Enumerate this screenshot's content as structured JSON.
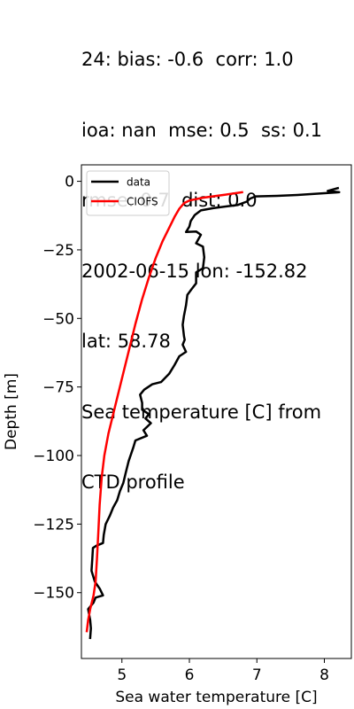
{
  "title_lines": [
    "24: bias: -0.6  corr: 1.0",
    "ioa: nan  mse: 0.5  ss: 0.1",
    "rmse: 0.7  dist: 0.0",
    "2002-06-15 lon: -152.82",
    "lat: 58.78",
    "Sea temperature [C] from",
    "CTD profile"
  ],
  "chart_data": {
    "type": "line",
    "title": "24: bias: -0.6  corr: 1.0\nioa: nan  mse: 0.5  ss: 0.1\nrmse: 0.7  dist: 0.0\n2002-06-15 lon: -152.82\nlat: 58.78\nSea temperature [C] from\nCTD profile",
    "xlabel": "Sea water temperature [C]",
    "ylabel": "Depth [m]",
    "xlim": [
      4.4,
      8.4
    ],
    "ylim": [
      -174,
      6
    ],
    "xticks": [
      5,
      6,
      7,
      8
    ],
    "yticks": [
      0,
      -25,
      -50,
      -75,
      -100,
      -125,
      -150
    ],
    "grid": false,
    "legend_position": "upper left",
    "series": [
      {
        "name": "data",
        "color": "#000000",
        "points": [
          [
            8.2,
            -2.5
          ],
          [
            8.05,
            -3.5
          ],
          [
            8.22,
            -4.0
          ],
          [
            7.6,
            -5.0
          ],
          [
            7.3,
            -5.3
          ],
          [
            6.98,
            -5.5
          ],
          [
            6.9,
            -6.3
          ],
          [
            6.85,
            -7.4
          ],
          [
            6.72,
            -8.6
          ],
          [
            6.35,
            -9.8
          ],
          [
            6.17,
            -10.6
          ],
          [
            6.08,
            -12.3
          ],
          [
            6.02,
            -14.5
          ],
          [
            6.0,
            -16.5
          ],
          [
            5.95,
            -18.5
          ],
          [
            6.1,
            -18.3
          ],
          [
            6.17,
            -19.5
          ],
          [
            6.1,
            -22.6
          ],
          [
            6.2,
            -23.8
          ],
          [
            6.22,
            -27.7
          ],
          [
            6.2,
            -31.7
          ],
          [
            6.1,
            -33.2
          ],
          [
            6.1,
            -37.2
          ],
          [
            6.03,
            -39.4
          ],
          [
            5.97,
            -41.4
          ],
          [
            5.95,
            -45.2
          ],
          [
            5.92,
            -49.0
          ],
          [
            5.9,
            -52.3
          ],
          [
            5.92,
            -56.5
          ],
          [
            5.93,
            -57.8
          ],
          [
            5.9,
            -59.6
          ],
          [
            5.95,
            -62.2
          ],
          [
            5.85,
            -63.8
          ],
          [
            5.78,
            -67.0
          ],
          [
            5.7,
            -70.2
          ],
          [
            5.58,
            -73.2
          ],
          [
            5.45,
            -74.0
          ],
          [
            5.33,
            -76.0
          ],
          [
            5.27,
            -77.8
          ],
          [
            5.3,
            -80.8
          ],
          [
            5.3,
            -83.3
          ],
          [
            5.4,
            -84.9
          ],
          [
            5.35,
            -86.5
          ],
          [
            5.43,
            -88.2
          ],
          [
            5.32,
            -90.8
          ],
          [
            5.37,
            -92.8
          ],
          [
            5.2,
            -94.5
          ],
          [
            5.17,
            -97.0
          ],
          [
            5.1,
            -102.0
          ],
          [
            5.06,
            -106.0
          ],
          [
            5.02,
            -110.0
          ],
          [
            4.97,
            -113.0
          ],
          [
            4.93,
            -116.3
          ],
          [
            4.87,
            -119.0
          ],
          [
            4.82,
            -122.0
          ],
          [
            4.76,
            -125.0
          ],
          [
            4.73,
            -129.0
          ],
          [
            4.72,
            -131.9
          ],
          [
            4.62,
            -132.9
          ],
          [
            4.57,
            -133.7
          ],
          [
            4.56,
            -138.2
          ],
          [
            4.55,
            -142.0
          ],
          [
            4.6,
            -146.0
          ],
          [
            4.67,
            -148.5
          ],
          [
            4.72,
            -151.0
          ],
          [
            4.61,
            -151.8
          ],
          [
            4.58,
            -153.6
          ],
          [
            4.5,
            -156.0
          ],
          [
            4.53,
            -160.0
          ],
          [
            4.54,
            -163.0
          ],
          [
            4.53,
            -166.5
          ]
        ]
      },
      {
        "name": "CIOFS",
        "color": "#ff0000",
        "points": [
          [
            6.78,
            -4.0
          ],
          [
            6.5,
            -5.0
          ],
          [
            6.2,
            -6.0
          ],
          [
            6.0,
            -7.0
          ],
          [
            5.92,
            -8.0
          ],
          [
            5.85,
            -10.0
          ],
          [
            5.78,
            -13.0
          ],
          [
            5.7,
            -17.0
          ],
          [
            5.6,
            -22.0
          ],
          [
            5.5,
            -28.0
          ],
          [
            5.4,
            -35.0
          ],
          [
            5.3,
            -43.0
          ],
          [
            5.2,
            -52.0
          ],
          [
            5.1,
            -62.0
          ],
          [
            5.0,
            -72.0
          ],
          [
            4.9,
            -82.0
          ],
          [
            4.8,
            -92.0
          ],
          [
            4.74,
            -100.0
          ],
          [
            4.7,
            -108.0
          ],
          [
            4.67,
            -118.0
          ],
          [
            4.65,
            -128.0
          ],
          [
            4.63,
            -138.0
          ],
          [
            4.61,
            -146.0
          ],
          [
            4.58,
            -151.0
          ],
          [
            4.53,
            -156.0
          ],
          [
            4.5,
            -160.0
          ],
          [
            4.48,
            -164.0
          ]
        ]
      }
    ]
  }
}
